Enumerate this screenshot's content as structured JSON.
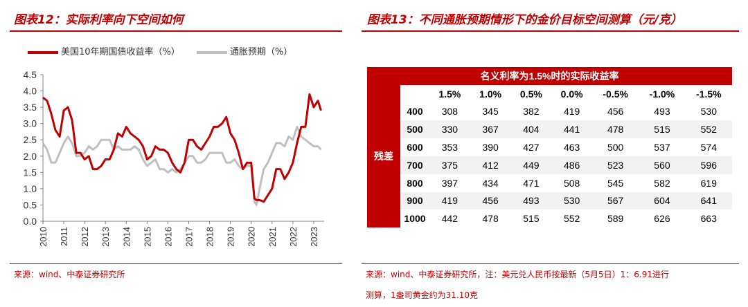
{
  "left_panel": {
    "title": "图表12：实际利率向下空间如何",
    "source": "来源：wind、中泰证券研究所"
  },
  "right_panel": {
    "title": "图表13：不同通胀预期情形下的金价目标空间测算（元/克）",
    "source_line1": "来源：wind、中泰证券研究所，注：美元兑人民币按最新（5月5日）1：6.91进行",
    "source_line2": "测算，1盎司黄金约为31.10克"
  },
  "colors": {
    "accent": "#c00000",
    "series1": "#c00000",
    "series2": "#bfbfbf"
  },
  "chart_data": [
    {
      "type": "line",
      "series": [
        {
          "name": "美国10年期国债收益率（%）",
          "x": [
            2010.0,
            2010.2,
            2010.4,
            2010.6,
            2010.8,
            2011.0,
            2011.2,
            2011.4,
            2011.6,
            2011.8,
            2012.0,
            2012.2,
            2012.4,
            2012.6,
            2012.8,
            2013.0,
            2013.2,
            2013.4,
            2013.6,
            2013.8,
            2014.0,
            2014.2,
            2014.4,
            2014.6,
            2014.8,
            2015.0,
            2015.2,
            2015.4,
            2015.6,
            2015.8,
            2016.0,
            2016.2,
            2016.4,
            2016.6,
            2016.8,
            2017.0,
            2017.2,
            2017.4,
            2017.6,
            2017.8,
            2018.0,
            2018.2,
            2018.4,
            2018.6,
            2018.8,
            2019.0,
            2019.2,
            2019.4,
            2019.6,
            2019.8,
            2020.0,
            2020.15,
            2020.25,
            2020.4,
            2020.6,
            2020.8,
            2021.0,
            2021.2,
            2021.4,
            2021.6,
            2021.8,
            2022.0,
            2022.2,
            2022.4,
            2022.6,
            2022.8,
            2023.0,
            2023.2,
            2023.35
          ],
          "values": [
            3.8,
            3.7,
            3.3,
            2.8,
            2.6,
            3.4,
            3.5,
            3.1,
            2.1,
            2.1,
            1.9,
            2.0,
            1.6,
            1.6,
            1.7,
            1.9,
            1.9,
            2.2,
            2.7,
            2.6,
            2.9,
            2.7,
            2.6,
            2.5,
            2.3,
            1.9,
            2.0,
            2.3,
            2.2,
            2.2,
            2.1,
            1.8,
            1.6,
            1.5,
            1.8,
            2.5,
            2.5,
            2.3,
            2.2,
            2.4,
            2.6,
            2.9,
            2.9,
            3.0,
            3.2,
            2.7,
            2.5,
            2.1,
            1.6,
            1.8,
            1.8,
            0.7,
            0.65,
            0.65,
            0.6,
            0.8,
            1.0,
            1.6,
            1.6,
            1.3,
            1.5,
            1.8,
            2.4,
            2.9,
            2.9,
            3.9,
            3.5,
            3.7,
            3.4
          ]
        },
        {
          "name": "通胀预期（%）",
          "x": [
            2010.0,
            2010.2,
            2010.4,
            2010.6,
            2010.8,
            2011.0,
            2011.2,
            2011.4,
            2011.6,
            2011.8,
            2012.0,
            2012.2,
            2012.4,
            2012.6,
            2012.8,
            2013.0,
            2013.2,
            2013.4,
            2013.6,
            2013.8,
            2014.0,
            2014.2,
            2014.4,
            2014.6,
            2014.8,
            2015.0,
            2015.2,
            2015.4,
            2015.6,
            2015.8,
            2016.0,
            2016.2,
            2016.4,
            2016.6,
            2016.8,
            2017.0,
            2017.2,
            2017.4,
            2017.6,
            2017.8,
            2018.0,
            2018.2,
            2018.4,
            2018.6,
            2018.8,
            2019.0,
            2019.2,
            2019.4,
            2019.6,
            2019.8,
            2020.0,
            2020.15,
            2020.25,
            2020.4,
            2020.6,
            2020.8,
            2021.0,
            2021.2,
            2021.4,
            2021.6,
            2021.8,
            2022.0,
            2022.2,
            2022.4,
            2022.6,
            2022.8,
            2023.0,
            2023.2,
            2023.35
          ],
          "values": [
            2.4,
            2.2,
            1.8,
            1.8,
            2.1,
            2.4,
            2.6,
            2.4,
            2.0,
            2.0,
            2.1,
            2.3,
            2.2,
            2.3,
            2.5,
            2.5,
            2.5,
            2.2,
            2.3,
            2.2,
            2.2,
            2.2,
            2.3,
            2.2,
            1.9,
            1.7,
            1.8,
            1.9,
            1.6,
            1.6,
            1.5,
            1.6,
            1.5,
            1.6,
            1.8,
            2.0,
            2.0,
            1.8,
            1.8,
            1.9,
            2.1,
            2.1,
            2.1,
            2.1,
            1.8,
            1.8,
            1.9,
            1.7,
            1.6,
            1.7,
            1.7,
            0.6,
            0.5,
            1.0,
            1.6,
            1.8,
            2.1,
            2.4,
            2.4,
            2.3,
            2.6,
            2.5,
            2.9,
            2.6,
            2.5,
            2.4,
            2.3,
            2.3,
            2.2
          ]
        }
      ],
      "xlim": [
        2010,
        2023.5
      ],
      "ylim": [
        0,
        4.5
      ],
      "x_ticks": [
        "2010",
        "2011",
        "2012",
        "2013",
        "2014",
        "2015",
        "2016",
        "2017",
        "2018",
        "2019",
        "2020",
        "2021",
        "2022",
        "2023"
      ],
      "y_ticks": [
        "0.0",
        "0.5",
        "1.0",
        "1.5",
        "2.0",
        "2.5",
        "3.0",
        "3.5",
        "4.0",
        "4.5"
      ],
      "grid": false,
      "legend_position": "top"
    },
    {
      "type": "table",
      "header_title": "名义利率为1.5%时的实际收益率",
      "row_axis_label": "残差",
      "columns": [
        "1.5%",
        "1.0%",
        "0.5%",
        "0.0%",
        "-0.5%",
        "-1.0%",
        "-1.5%"
      ],
      "rows": [
        {
          "label": "400",
          "values": [
            "308",
            "345",
            "382",
            "419",
            "456",
            "493",
            "530"
          ]
        },
        {
          "label": "500",
          "values": [
            "330",
            "367",
            "404",
            "441",
            "478",
            "515",
            "552"
          ]
        },
        {
          "label": "600",
          "values": [
            "353",
            "390",
            "427",
            "463",
            "500",
            "537",
            "574"
          ]
        },
        {
          "label": "700",
          "values": [
            "375",
            "412",
            "449",
            "486",
            "523",
            "560",
            "596"
          ]
        },
        {
          "label": "800",
          "values": [
            "397",
            "434",
            "471",
            "508",
            "545",
            "582",
            "619"
          ]
        },
        {
          "label": "900",
          "values": [
            "419",
            "456",
            "493",
            "530",
            "567",
            "604",
            "641"
          ]
        },
        {
          "label": "1000",
          "values": [
            "442",
            "478",
            "515",
            "552",
            "589",
            "626",
            "663"
          ]
        }
      ]
    }
  ]
}
